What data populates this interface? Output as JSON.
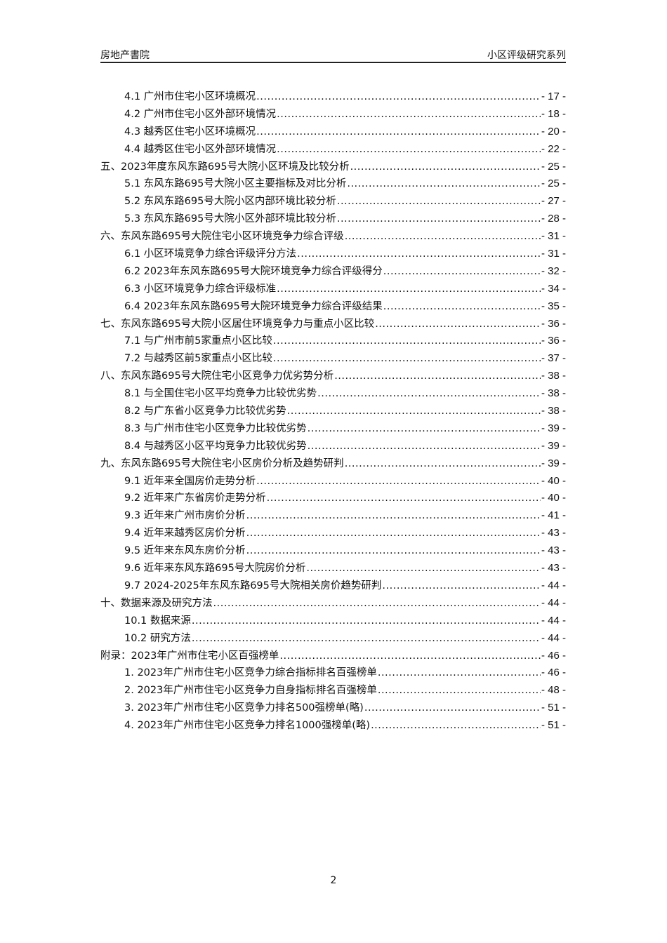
{
  "header": {
    "left": "房地产書院",
    "right": "小区评级研究系列"
  },
  "toc": [
    {
      "level": 2,
      "title": "4.1 广州市住宅小区环境概况",
      "page": "- 17 -"
    },
    {
      "level": 2,
      "title": "4.2 广州市住宅小区外部环境情况",
      "page": "- 18 -"
    },
    {
      "level": 2,
      "title": "4.3 越秀区住宅小区环境概况",
      "page": "- 20 -"
    },
    {
      "level": 2,
      "title": "4.4 越秀区住宅小区外部环境情况",
      "page": "- 22 -"
    },
    {
      "level": 1,
      "title": "五、2023年度东风东路695号大院小区环境及比较分析",
      "page": "- 25 -"
    },
    {
      "level": 2,
      "title": "5.1 东风东路695号大院小区主要指标及对比分析",
      "page": "- 25 -"
    },
    {
      "level": 2,
      "title": "5.2 东风东路695号大院小区内部环境比较分析",
      "page": "- 27 -"
    },
    {
      "level": 2,
      "title": "5.3 东风东路695号大院小区外部环境比较分析",
      "page": "- 28 -"
    },
    {
      "level": 1,
      "title": "六、东风东路695号大院住宅小区环境竞争力综合评级",
      "page": "- 31 -"
    },
    {
      "level": 2,
      "title": "6.1 小区环境竞争力综合评级评分方法",
      "page": "- 31 -"
    },
    {
      "level": 2,
      "title": "6.2 2023年东风东路695号大院环境竞争力综合评级得分",
      "page": "- 32 -"
    },
    {
      "level": 2,
      "title": "6.3 小区环境竞争力综合评级标准",
      "page": "- 34 -"
    },
    {
      "level": 2,
      "title": "6.4 2023年东风东路695号大院环境竞争力综合评级结果",
      "page": "- 35 -"
    },
    {
      "level": 1,
      "title": "七、东风东路695号大院小区居住环境竞争力与重点小区比较",
      "page": "- 36 -"
    },
    {
      "level": 2,
      "title": "7.1 与广州市前5家重点小区比较",
      "page": "- 36 -"
    },
    {
      "level": 2,
      "title": "7.2 与越秀区前5家重点小区比较",
      "page": "- 37 -"
    },
    {
      "level": 1,
      "title": "八、东风东路695号大院住宅小区竞争力优劣势分析",
      "page": "- 38 -"
    },
    {
      "level": 2,
      "title": "8.1 与全国住宅小区平均竞争力比较优劣势",
      "page": "- 38 -"
    },
    {
      "level": 2,
      "title": "8.2 与广东省小区竞争力比较优劣势",
      "page": "- 38 -"
    },
    {
      "level": 2,
      "title": "8.3 与广州市住宅小区竞争力比较优劣势",
      "page": "- 39 -"
    },
    {
      "level": 2,
      "title": "8.4 与越秀区小区平均竞争力比较优劣势",
      "page": "- 39 -"
    },
    {
      "level": 1,
      "title": "九、东风东路695号大院住宅小区房价分析及趋势研判",
      "page": "- 39 -"
    },
    {
      "level": 2,
      "title": "9.1 近年来全国房价走势分析",
      "page": "- 40 -"
    },
    {
      "level": 2,
      "title": "9.2 近年来广东省房价走势分析",
      "page": "- 40 -"
    },
    {
      "level": 2,
      "title": "9.3 近年来广州市房价分析",
      "page": "- 41 -"
    },
    {
      "level": 2,
      "title": "9.4 近年来越秀区房价分析",
      "page": "- 43 -"
    },
    {
      "level": 2,
      "title": "9.5 近年来东风东房价分析",
      "page": "- 43 -"
    },
    {
      "level": 2,
      "title": "9.6 近年来东风东路695号大院房价分析",
      "page": "- 43 -"
    },
    {
      "level": 2,
      "title": "9.7 2024-2025年东风东路695号大院相关房价趋势研判",
      "page": "- 44 -"
    },
    {
      "level": 1,
      "title": "十、数据来源及研究方法",
      "page": "- 44 -"
    },
    {
      "level": 2,
      "title": "10.1 数据来源",
      "page": "- 44 -"
    },
    {
      "level": 2,
      "title": "10.2 研究方法",
      "page": "- 44 -"
    },
    {
      "level": 1,
      "title": "附录：2023年广州市住宅小区百强榜单",
      "page": "- 46 -"
    },
    {
      "level": 2,
      "title": "1. 2023年广州市住宅小区竞争力综合指标排名百强榜单",
      "page": "- 46 -"
    },
    {
      "level": 2,
      "title": "2. 2023年广州市住宅小区竞争力自身指标排名百强榜单",
      "page": "- 48 -"
    },
    {
      "level": 2,
      "title": "3. 2023年广州市住宅小区竞争力排名500强榜单(略)",
      "page": "- 51 -"
    },
    {
      "level": 2,
      "title": "4. 2023年广州市住宅小区竞争力排名1000强榜单(略)",
      "page": "- 51 -"
    }
  ],
  "footer": {
    "page_number": "2"
  }
}
